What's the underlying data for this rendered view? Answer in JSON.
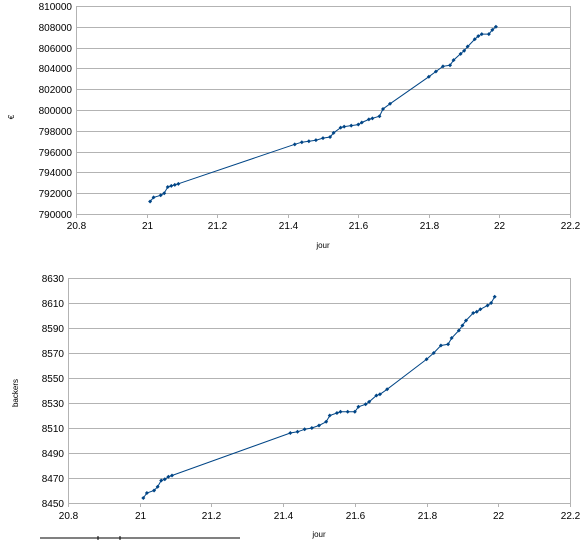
{
  "chart_data": [
    {
      "type": "scatter",
      "title": "",
      "xlabel": "jour",
      "ylabel": "€",
      "xlim": [
        20.8,
        22.2
      ],
      "ylim": [
        790000,
        810000
      ],
      "xticks": [
        "20.8",
        "21",
        "21.2",
        "21.4",
        "21.6",
        "21.8",
        "22",
        "22.2"
      ],
      "yticks": [
        "790000",
        "792000",
        "794000",
        "796000",
        "798000",
        "800000",
        "802000",
        "804000",
        "806000",
        "808000",
        "810000"
      ],
      "grid": "horizontal",
      "series": [
        {
          "color": "#004586",
          "x": [
            21.01,
            21.02,
            21.04,
            21.05,
            21.06,
            21.07,
            21.08,
            21.09,
            21.42,
            21.44,
            21.46,
            21.48,
            21.5,
            21.52,
            21.53,
            21.55,
            21.56,
            21.58,
            21.6,
            21.61,
            21.63,
            21.64,
            21.66,
            21.67,
            21.69,
            21.8,
            21.82,
            21.84,
            21.86,
            21.87,
            21.89,
            21.9,
            21.91,
            21.93,
            21.94,
            21.95,
            21.97,
            21.98,
            21.99
          ],
          "y": [
            791200,
            791600,
            791800,
            792000,
            792600,
            792700,
            792800,
            792900,
            796700,
            796900,
            797000,
            797100,
            797300,
            797400,
            797800,
            798300,
            798400,
            798500,
            798600,
            798800,
            799100,
            799200,
            799400,
            800100,
            800600,
            803200,
            803700,
            804200,
            804300,
            804800,
            805400,
            805700,
            806100,
            806800,
            807100,
            807300,
            807300,
            807700,
            808000
          ]
        }
      ]
    },
    {
      "type": "scatter",
      "title": "",
      "xlabel": "jour",
      "ylabel": "backers",
      "xlim": [
        20.8,
        22.2
      ],
      "ylim": [
        8450,
        8630
      ],
      "xticks": [
        "20.8",
        "21",
        "21.2",
        "21.4",
        "21.6",
        "21.8",
        "22",
        "22.2"
      ],
      "yticks": [
        "8450",
        "8470",
        "8490",
        "8510",
        "8530",
        "8550",
        "8570",
        "8590",
        "8610",
        "8630"
      ],
      "grid": "horizontal",
      "series": [
        {
          "color": "#004586",
          "x": [
            21.01,
            21.02,
            21.04,
            21.05,
            21.06,
            21.07,
            21.08,
            21.09,
            21.42,
            21.44,
            21.46,
            21.48,
            21.5,
            21.52,
            21.53,
            21.55,
            21.56,
            21.58,
            21.6,
            21.61,
            21.63,
            21.64,
            21.66,
            21.67,
            21.69,
            21.8,
            21.82,
            21.84,
            21.86,
            21.87,
            21.89,
            21.9,
            21.91,
            21.93,
            21.94,
            21.95,
            21.97,
            21.98,
            21.99
          ],
          "y": [
            8454,
            8458,
            8460,
            8463,
            8468,
            8469,
            8471,
            8472,
            8506,
            8507,
            8509,
            8510,
            8512,
            8515,
            8520,
            8522,
            8523,
            8523,
            8523,
            8527,
            8529,
            8531,
            8536,
            8537,
            8541,
            8565,
            8570,
            8576,
            8577,
            8582,
            8588,
            8592,
            8596,
            8602,
            8603,
            8605,
            8608,
            8610,
            8615
          ]
        }
      ]
    }
  ]
}
